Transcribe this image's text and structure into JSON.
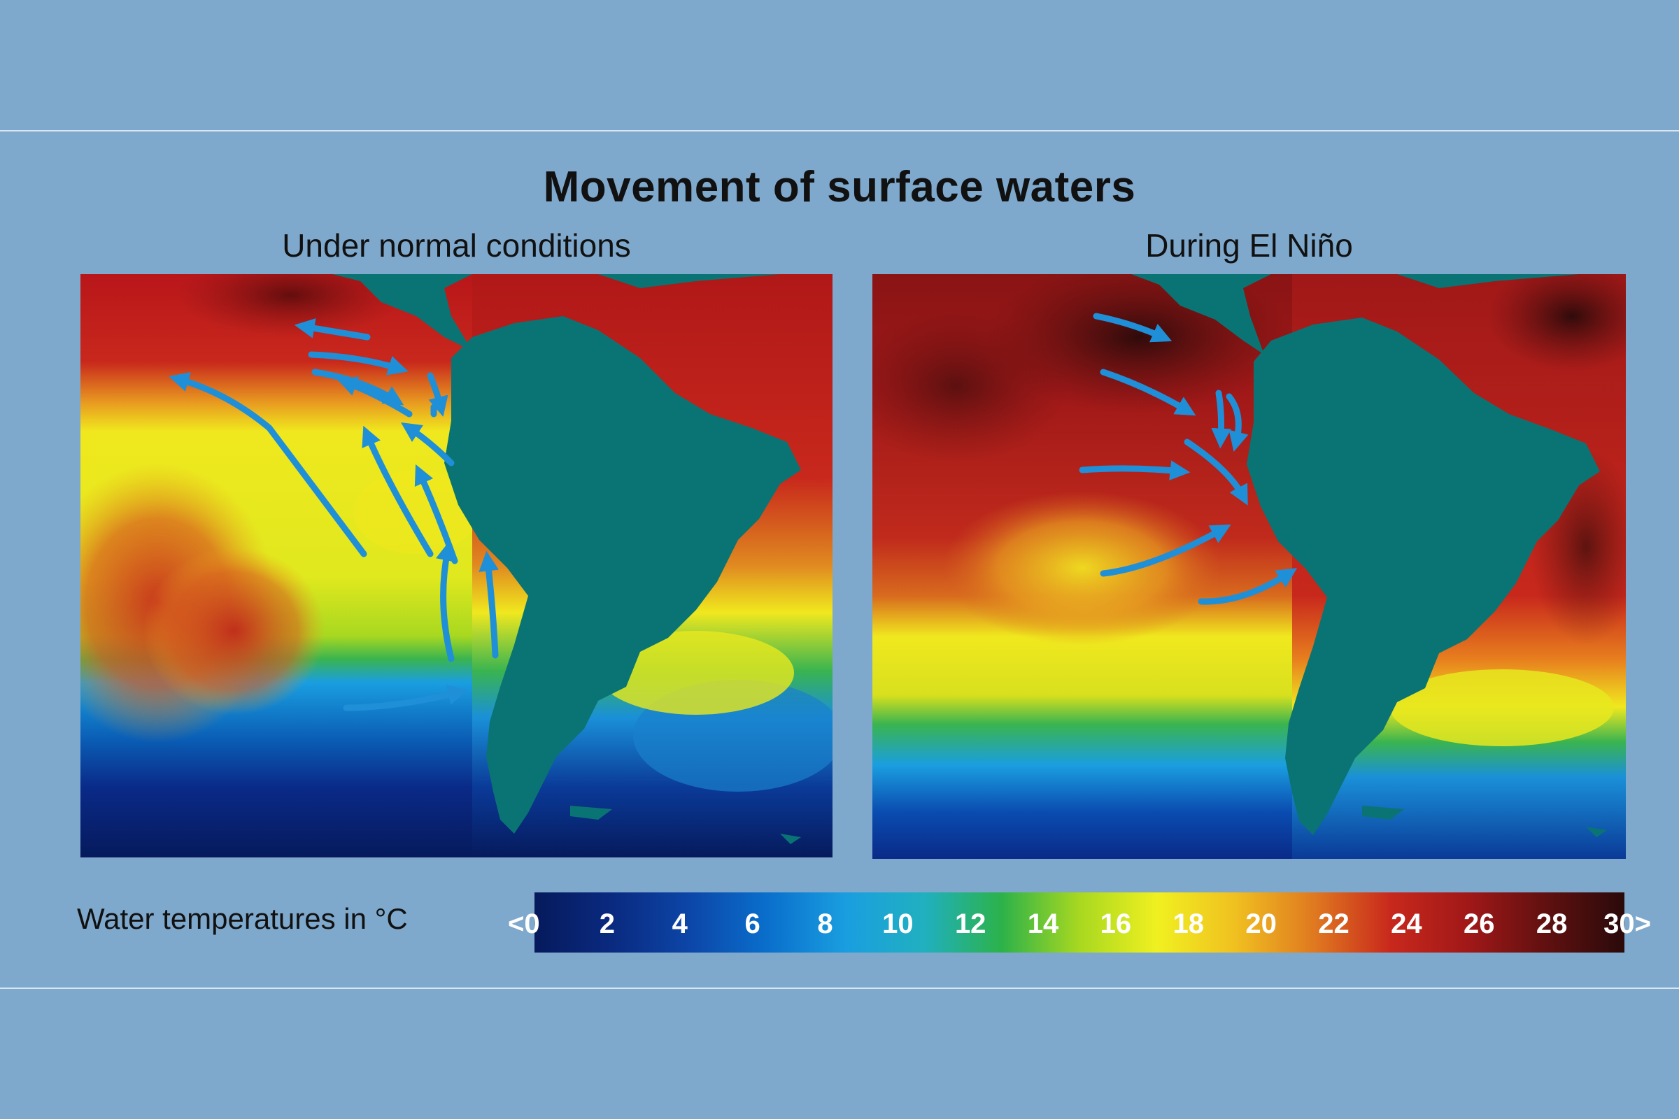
{
  "title": "Movement of surface waters",
  "panels": {
    "normal": {
      "title": "Under normal conditions"
    },
    "el_nino": {
      "title": "During El Niño"
    }
  },
  "legend": {
    "label": "Water temperatures in °C",
    "ticks": [
      "0",
      "2",
      "4",
      "6",
      "8",
      "10",
      "12",
      "14",
      "16",
      "18",
      "20",
      "22",
      "24",
      "26",
      "28",
      "30"
    ],
    "low_prefix": "<",
    "high_suffix": ">",
    "colors": [
      "#061a5c",
      "#0a2a80",
      "#0c46a8",
      "#0a6fcc",
      "#1a9ee0",
      "#20b0c0",
      "#2cb24a",
      "#a8d820",
      "#f0f020",
      "#f0c020",
      "#e07a20",
      "#c8281c",
      "#a01818",
      "#601010",
      "#2a0a0a"
    ]
  },
  "colors": {
    "background": "#7ea8cc",
    "land": "#0a7474",
    "arrow": "#1f8fd8"
  }
}
